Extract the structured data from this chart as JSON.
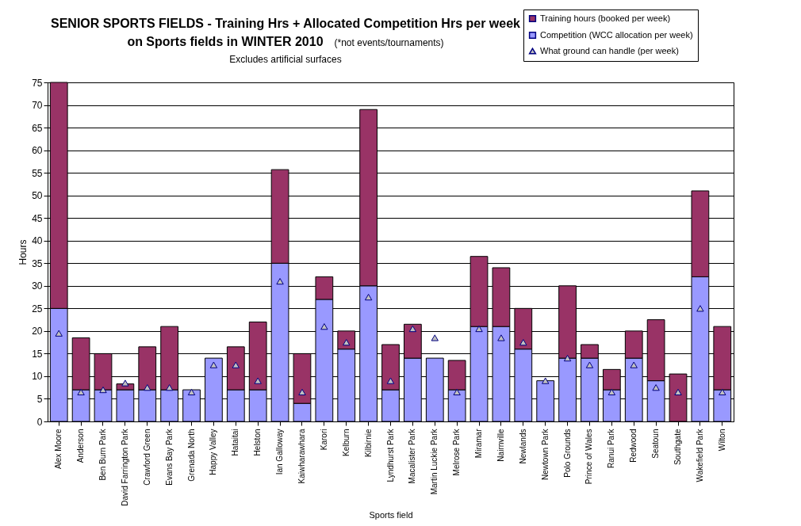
{
  "chart_data": {
    "type": "bar",
    "title": "SENIOR SPORTS FIELDS -  Training Hrs + Allocated Competition Hrs per week on Sports fields in  WINTER 2010",
    "subtitle": "Excludes artificial surfaces",
    "annotations": [
      "(*not events/tournaments)"
    ],
    "xlabel": "Sports field",
    "ylabel": "Hours",
    "categories": [
      "Alex Moore",
      "Anderson",
      "Ben Burn Park",
      "David Farrington Park",
      "Crawford Green",
      "Evans Bay Park",
      "Grenada North",
      "Happy Valley",
      "Hataitai",
      "Helston",
      "Ian Galloway",
      "Kaiwharawhara",
      "Karori",
      "Kelburn",
      "Kilbirnie",
      "Lyndhurst Park",
      "Macalister Park",
      "Martin Luckie Park",
      "Melrose Park",
      "Miramar",
      "Nairnville",
      "Newlands",
      "Newtown Park",
      "Polo Grounds",
      "Prince of Wales",
      "Ranui Park",
      "Redwood",
      "Seatoun",
      "Southgate",
      "Wakefield Park",
      "Wilton"
    ],
    "stacked": true,
    "series": [
      {
        "name": "Competition (WCC allocation per week)",
        "color": "#9999ff",
        "values": [
          25,
          7,
          7,
          7,
          7,
          7,
          7,
          14,
          7,
          7,
          35,
          4,
          27,
          16,
          30,
          7,
          14,
          14,
          7,
          21,
          21,
          16,
          9,
          14,
          14,
          7,
          14,
          9,
          0,
          32,
          7
        ]
      },
      {
        "name": "Training hours (booked per week)",
        "color": "#993366",
        "values": [
          50,
          11.5,
          8,
          1.3,
          9.5,
          14,
          0,
          0,
          9.5,
          15,
          20.7,
          11,
          5,
          4,
          39,
          10,
          7.5,
          0,
          6.5,
          15.5,
          13,
          9,
          0,
          16,
          3,
          4.5,
          6,
          13.5,
          10.5,
          19,
          14
        ]
      },
      {
        "name": "What ground can handle (per week)",
        "type": "scatter",
        "marker": "triangle",
        "color": "#c0c0c0",
        "x": [
          "Alex Moore",
          "Anderson",
          "Ben Burn Park",
          "David Farrington Park",
          "Crawford Green",
          "Evans Bay Park",
          "Grenada North",
          "Happy Valley",
          "Hataitai",
          "Helston",
          "Ian Galloway",
          "Kaiwharawhara",
          "Karori",
          "Kelburn",
          "Kilbirnie",
          "Lyndhurst Park",
          "Macalister Park",
          "Martin Luckie Park",
          "Melrose Park",
          "Miramar",
          "Nairnville",
          "Newlands",
          "Newtown Park",
          "Polo Grounds",
          "Prince of Wales",
          "Ranui Park",
          "Redwood",
          "Seatoun",
          "Southgate",
          "Wakefield Park",
          "Wilton"
        ],
        "values": [
          19.5,
          6.5,
          7,
          8.5,
          7.5,
          7.5,
          6.5,
          12.5,
          12.5,
          9,
          31,
          6.5,
          21,
          17.5,
          27.5,
          9,
          20.5,
          18.5,
          6.5,
          20.5,
          18.5,
          17.5,
          9,
          14,
          12.5,
          6.5,
          12.5,
          7.5,
          6.5,
          25,
          6.5
        ]
      }
    ],
    "ylim": [
      0,
      75
    ],
    "yticks": [
      0,
      5,
      10,
      15,
      20,
      25,
      30,
      35,
      40,
      45,
      50,
      55,
      60,
      65,
      70,
      75
    ],
    "grid": "y",
    "legend": "top right"
  }
}
